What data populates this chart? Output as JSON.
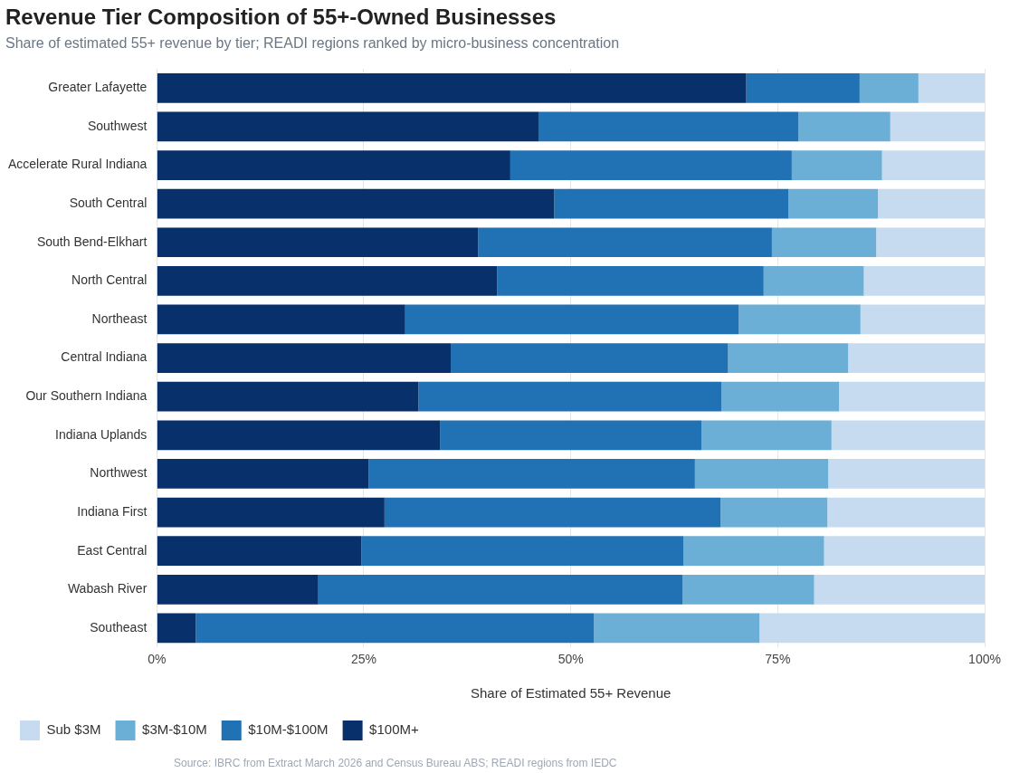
{
  "chart_data": {
    "type": "bar",
    "orientation": "horizontal",
    "stacked": true,
    "title": "Revenue Tier Composition of 55+-Owned Businesses",
    "subtitle": "Share of estimated 55+ revenue by tier; READI regions ranked by micro-business concentration",
    "xlabel": "Share of Estimated 55+ Revenue",
    "categories": [
      "Greater Lafayette",
      "Southwest",
      "Accelerate Rural Indiana",
      "South Central",
      "South Bend-Elkhart",
      "North Central",
      "Northeast",
      "Central Indiana",
      "Our Southern Indiana",
      "Indiana Uplands",
      "Northwest",
      "Indiana First",
      "East Central",
      "Wabash River",
      "Southeast"
    ],
    "series": [
      {
        "name": "$100M+",
        "color": "#08306b",
        "values": [
          71.2,
          46.1,
          42.7,
          48.0,
          38.8,
          41.1,
          30.0,
          35.5,
          31.6,
          34.2,
          25.6,
          27.5,
          24.7,
          19.5,
          4.7
        ]
      },
      {
        "name": "$10M-$100M",
        "color": "#2171b5",
        "values": [
          13.7,
          31.4,
          34.0,
          28.3,
          35.5,
          32.2,
          40.3,
          33.5,
          36.6,
          31.6,
          39.4,
          40.6,
          38.9,
          44.0,
          48.1
        ]
      },
      {
        "name": "$3M-$10M",
        "color": "#6baed6",
        "values": [
          7.1,
          11.1,
          10.9,
          10.8,
          12.6,
          12.1,
          14.7,
          14.5,
          14.2,
          15.7,
          16.1,
          12.9,
          17.0,
          15.9,
          20.0
        ]
      },
      {
        "name": "Sub $3M",
        "color": "#c6dbef",
        "values": [
          8.0,
          11.4,
          12.4,
          12.9,
          13.1,
          14.6,
          15.0,
          16.5,
          17.6,
          18.5,
          18.9,
          19.0,
          19.4,
          20.6,
          27.2
        ]
      }
    ],
    "xlim": [
      0,
      100
    ],
    "xticks": [
      {
        "value": 0,
        "label": "0%"
      },
      {
        "value": 25,
        "label": "25%"
      },
      {
        "value": 50,
        "label": "50%"
      },
      {
        "value": 75,
        "label": "75%"
      },
      {
        "value": 100,
        "label": "100%"
      }
    ],
    "grid": "x",
    "legend": "bottom left",
    "annotations": [
      "Source: IBRC from Extract March 2026 and Census Bureau ABS; READI regions from IEDC"
    ]
  }
}
